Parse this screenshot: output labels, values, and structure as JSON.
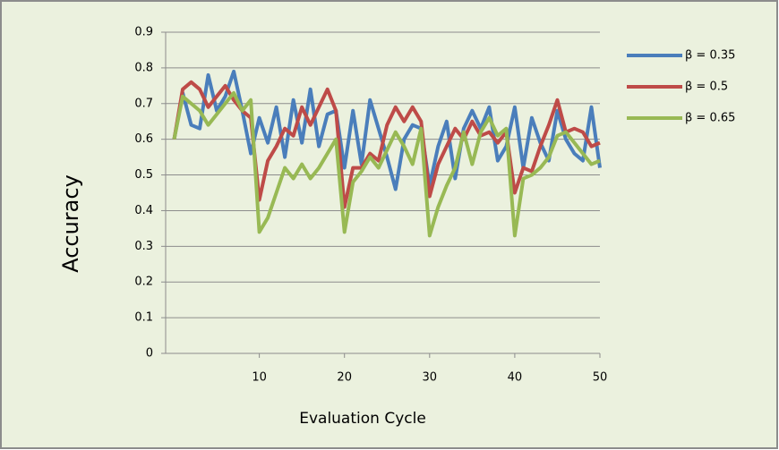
{
  "chart_data": {
    "type": "line",
    "x_label": "Evaluation Cycle",
    "y_label": "Accuracy",
    "x": [
      0,
      1,
      2,
      3,
      4,
      5,
      6,
      7,
      8,
      9,
      10,
      11,
      12,
      13,
      14,
      15,
      16,
      17,
      18,
      19,
      20,
      21,
      22,
      23,
      24,
      25,
      26,
      27,
      28,
      29,
      30,
      31,
      32,
      33,
      34,
      35,
      36,
      37,
      38,
      39,
      40,
      41,
      42,
      43,
      44,
      45,
      46,
      47,
      48,
      49,
      50
    ],
    "series": [
      {
        "name": "β = 0.35",
        "color": "#4a7ebb",
        "values": [
          0.6,
          0.73,
          0.64,
          0.63,
          0.78,
          0.68,
          0.72,
          0.79,
          0.68,
          0.56,
          0.66,
          0.59,
          0.69,
          0.55,
          0.71,
          0.59,
          0.74,
          0.58,
          0.67,
          0.68,
          0.52,
          0.68,
          0.53,
          0.71,
          0.63,
          0.55,
          0.46,
          0.6,
          0.64,
          0.63,
          0.47,
          0.58,
          0.65,
          0.49,
          0.63,
          0.68,
          0.63,
          0.69,
          0.54,
          0.58,
          0.69,
          0.52,
          0.66,
          0.59,
          0.54,
          0.68,
          0.6,
          0.56,
          0.54,
          0.69,
          0.52
        ]
      },
      {
        "name": "β = 0.5",
        "color": "#be4b48",
        "values": [
          0.6,
          0.74,
          0.76,
          0.74,
          0.69,
          0.72,
          0.75,
          0.71,
          0.68,
          0.66,
          0.43,
          0.54,
          0.58,
          0.63,
          0.61,
          0.69,
          0.64,
          0.69,
          0.74,
          0.68,
          0.41,
          0.52,
          0.52,
          0.56,
          0.54,
          0.64,
          0.69,
          0.65,
          0.69,
          0.65,
          0.44,
          0.53,
          0.58,
          0.63,
          0.6,
          0.65,
          0.61,
          0.62,
          0.59,
          0.62,
          0.45,
          0.52,
          0.51,
          0.58,
          0.64,
          0.71,
          0.62,
          0.63,
          0.62,
          0.58,
          0.59
        ]
      },
      {
        "name": "β = 0.65",
        "color": "#98b954",
        "values": [
          0.6,
          0.72,
          0.7,
          0.68,
          0.64,
          0.67,
          0.7,
          0.73,
          0.68,
          0.71,
          0.34,
          0.38,
          0.45,
          0.52,
          0.49,
          0.53,
          0.49,
          0.52,
          0.56,
          0.6,
          0.34,
          0.48,
          0.51,
          0.55,
          0.52,
          0.57,
          0.62,
          0.58,
          0.53,
          0.63,
          0.33,
          0.41,
          0.47,
          0.52,
          0.62,
          0.53,
          0.62,
          0.66,
          0.61,
          0.63,
          0.33,
          0.49,
          0.5,
          0.52,
          0.55,
          0.61,
          0.62,
          0.59,
          0.56,
          0.53,
          0.54
        ]
      }
    ],
    "xlim": [
      -1,
      50
    ],
    "xticks": [
      10,
      20,
      30,
      40,
      50
    ],
    "ylim": [
      0,
      0.9
    ],
    "yticks": [
      0,
      0.1,
      0.2,
      0.3,
      0.4,
      0.5,
      0.6,
      0.7,
      0.8,
      0.9
    ],
    "grid": true,
    "legend": "right"
  }
}
